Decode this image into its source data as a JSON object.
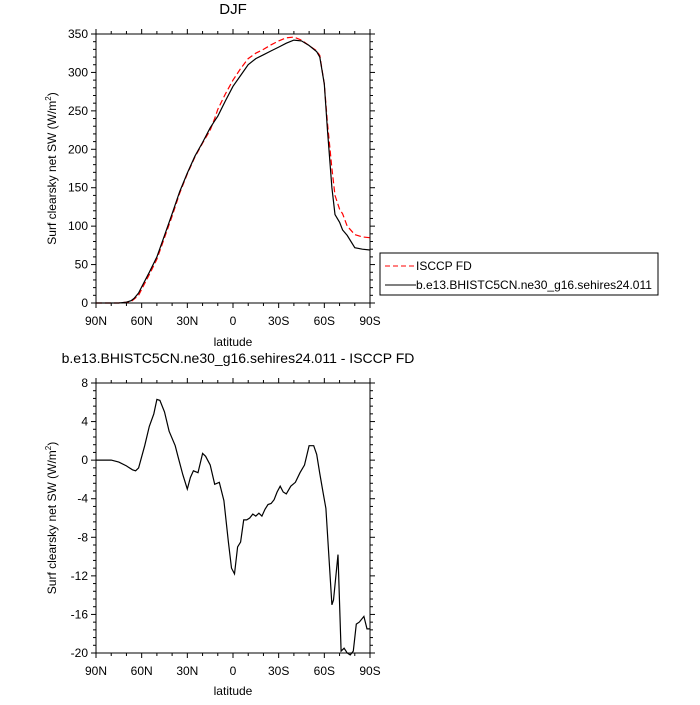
{
  "chart_data": [
    {
      "type": "line",
      "title": "DJF",
      "xlabel": "latitude",
      "ylabel": "Surf clearsky net SW (W/m²)",
      "ylabel_text": "Surf clearsky net SW (W/m",
      "ylabel_sup": "2",
      "ylabel_close": ")",
      "xlim": [
        90,
        -90
      ],
      "ylim": [
        0,
        350
      ],
      "x_ticks": [
        {
          "value": 90,
          "label": "90N"
        },
        {
          "value": 60,
          "label": "60N"
        },
        {
          "value": 30,
          "label": "30N"
        },
        {
          "value": 0,
          "label": "0"
        },
        {
          "value": -30,
          "label": "30S"
        },
        {
          "value": -60,
          "label": "60S"
        },
        {
          "value": -90,
          "label": "90S"
        }
      ],
      "y_ticks": [
        {
          "value": 0,
          "label": "0"
        },
        {
          "value": 50,
          "label": "50"
        },
        {
          "value": 100,
          "label": "100"
        },
        {
          "value": 150,
          "label": "150"
        },
        {
          "value": 200,
          "label": "200"
        },
        {
          "value": 250,
          "label": "250"
        },
        {
          "value": 300,
          "label": "300"
        },
        {
          "value": 350,
          "label": "350"
        }
      ],
      "legend_position": "right",
      "series": [
        {
          "name": "ISCCP FD",
          "color": "#ff0000",
          "dash": "dashed",
          "x": [
            90,
            80,
            75,
            70,
            67,
            65,
            62,
            60,
            55,
            50,
            45,
            40,
            35,
            30,
            25,
            20,
            15,
            12,
            10,
            5,
            0,
            -5,
            -10,
            -15,
            -20,
            -25,
            -30,
            -35,
            -40,
            -45,
            -50,
            -55,
            -57,
            -60,
            -62,
            -65,
            -67,
            -70,
            -72,
            -75,
            -80,
            -85,
            -90
          ],
          "y": [
            0,
            0,
            0,
            1,
            2,
            5,
            10,
            18,
            37,
            57,
            85,
            113,
            143,
            168,
            190,
            208,
            225,
            240,
            252,
            272,
            290,
            305,
            318,
            325,
            330,
            336,
            341,
            345,
            346,
            342,
            335,
            328,
            322,
            285,
            235,
            175,
            140,
            122,
            116,
            100,
            89,
            86,
            85
          ]
        },
        {
          "name": "b.e13.BHISTC5CN.ne30_g16.sehires24.011",
          "color": "#000000",
          "dash": "solid",
          "x": [
            90,
            80,
            75,
            70,
            67,
            65,
            62,
            60,
            55,
            50,
            45,
            40,
            35,
            30,
            25,
            20,
            15,
            12,
            10,
            5,
            0,
            -5,
            -10,
            -15,
            -20,
            -25,
            -30,
            -35,
            -40,
            -45,
            -50,
            -55,
            -57,
            -60,
            -62,
            -65,
            -67,
            -70,
            -72,
            -75,
            -80,
            -85,
            -90
          ],
          "y": [
            0,
            0,
            0,
            1,
            3,
            6,
            13,
            21,
            40,
            60,
            88,
            116,
            145,
            169,
            191,
            209,
            228,
            237,
            243,
            263,
            282,
            296,
            310,
            318,
            323,
            328,
            333,
            338,
            342,
            341,
            335,
            327,
            320,
            285,
            226,
            150,
            115,
            105,
            95,
            88,
            72,
            70,
            69
          ]
        }
      ]
    },
    {
      "type": "line",
      "title": "b.e13.BHISTC5CN.ne30_g16.sehires24.011 - ISCCP FD",
      "xlabel": "latitude",
      "ylabel": "Surf clearsky net SW (W/m²)",
      "ylabel_text": "Surf clearsky net SW (W/m",
      "ylabel_sup": "2",
      "ylabel_close": ")",
      "xlim": [
        90,
        -90
      ],
      "ylim": [
        -20,
        8
      ],
      "x_ticks": [
        {
          "value": 90,
          "label": "90N"
        },
        {
          "value": 60,
          "label": "60N"
        },
        {
          "value": 30,
          "label": "30N"
        },
        {
          "value": 0,
          "label": "0"
        },
        {
          "value": -30,
          "label": "30S"
        },
        {
          "value": -60,
          "label": "60S"
        },
        {
          "value": -90,
          "label": "90S"
        }
      ],
      "y_ticks": [
        {
          "value": 8,
          "label": "8"
        },
        {
          "value": 4,
          "label": "4"
        },
        {
          "value": 0,
          "label": "0"
        },
        {
          "value": -4,
          "label": "-4"
        },
        {
          "value": -8,
          "label": "-8"
        },
        {
          "value": -12,
          "label": "-12"
        },
        {
          "value": -16,
          "label": "-16"
        },
        {
          "value": -20,
          "label": "-20"
        }
      ],
      "series": [
        {
          "name": "",
          "color": "#000000",
          "dash": "solid",
          "x": [
            90,
            80,
            75,
            70,
            66,
            64,
            62,
            58,
            55,
            52,
            50,
            48,
            45,
            42,
            38,
            36,
            33,
            30,
            28,
            26,
            23,
            20,
            18,
            15,
            12,
            9,
            6,
            3,
            1,
            -1,
            -3,
            -5,
            -7,
            -9,
            -11,
            -13,
            -15,
            -17,
            -19,
            -21,
            -23,
            -25,
            -27,
            -29,
            -31,
            -33,
            -35,
            -38,
            -41,
            -44,
            -47,
            -50,
            -53,
            -55,
            -57,
            -59,
            -61,
            -63,
            -65,
            -66,
            -69,
            -71,
            -73,
            -75,
            -77,
            -79,
            -81,
            -83,
            -86,
            -88,
            -90
          ],
          "y": [
            0,
            0,
            -0.2,
            -0.6,
            -1.0,
            -1.1,
            -0.8,
            1.5,
            3.5,
            4.8,
            6.3,
            6.2,
            5.0,
            3.0,
            1.5,
            0.3,
            -1.5,
            -3.0,
            -1.8,
            -1.1,
            -1.3,
            0.7,
            0.4,
            -0.5,
            -2.5,
            -2.3,
            -4.2,
            -8.5,
            -11.2,
            -11.8,
            -9.0,
            -8.5,
            -6.2,
            -6.2,
            -6.0,
            -5.6,
            -5.8,
            -5.5,
            -5.8,
            -5.1,
            -4.6,
            -4.5,
            -4.1,
            -3.3,
            -2.7,
            -3.3,
            -3.5,
            -2.7,
            -2.3,
            -1.3,
            -0.5,
            1.5,
            1.5,
            0.6,
            -1.4,
            -3.2,
            -5.0,
            -10.0,
            -15.0,
            -14.5,
            -9.8,
            -19.8,
            -19.5,
            -20.0,
            -20.2,
            -19.8,
            -17.0,
            -16.8,
            -16.2,
            -17.5,
            -17.5
          ]
        }
      ]
    }
  ]
}
